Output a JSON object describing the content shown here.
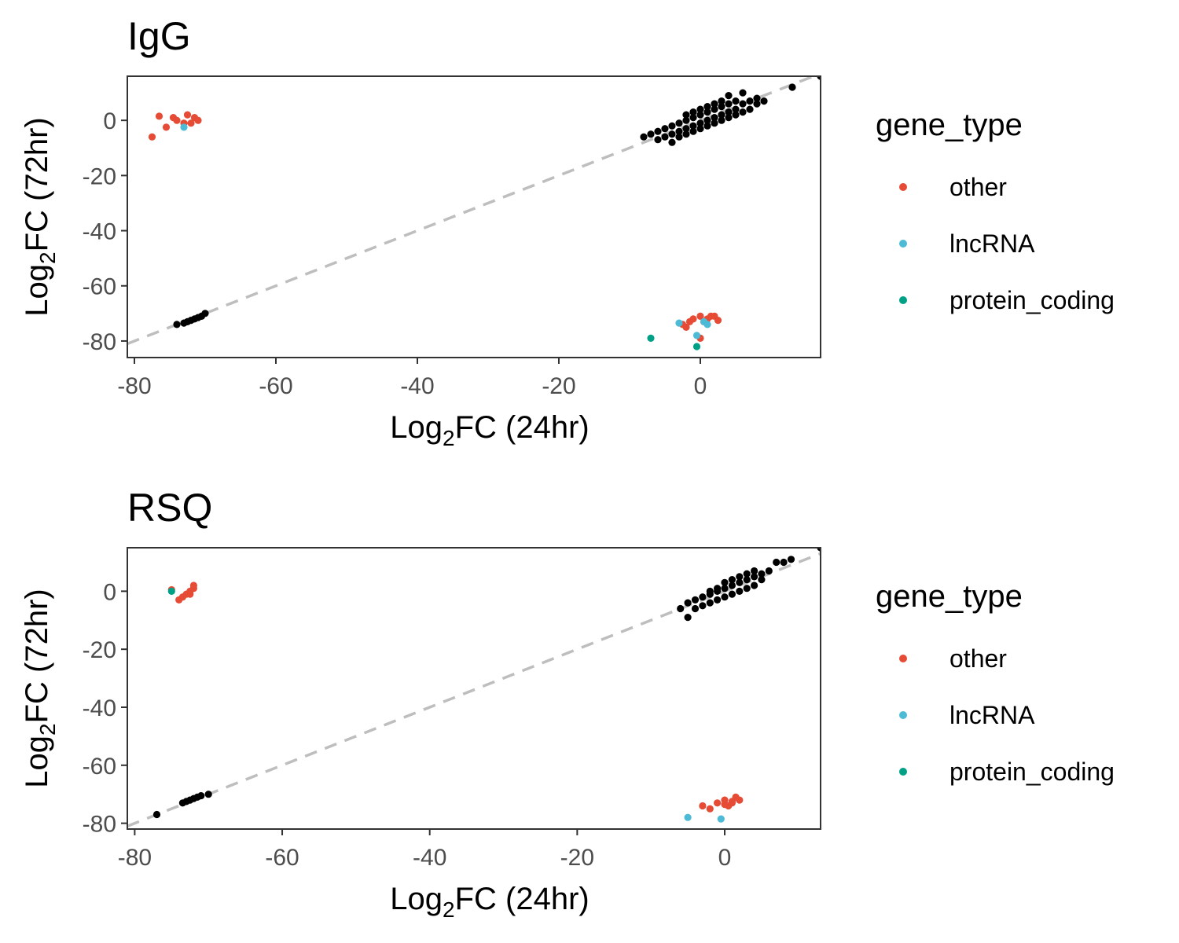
{
  "chart_data": [
    {
      "type": "scatter",
      "title": "IgG",
      "xlabel": {
        "base": "Log",
        "sub": "2",
        "rest": "FC (24hr)"
      },
      "ylabel": {
        "base": "Log",
        "sub": "2",
        "rest": "FC (72hr)"
      },
      "xlim": [
        -81,
        17
      ],
      "ylim": [
        -86,
        16
      ],
      "xticks": [
        -80,
        -60,
        -40,
        -20,
        0
      ],
      "yticks": [
        0,
        -20,
        -40,
        -60,
        -80
      ],
      "grid": false,
      "reference_line": {
        "style": "dashed",
        "slope": 1,
        "intercept": 0,
        "color": "#bebebe"
      },
      "legend": {
        "title": "gene_type",
        "position": "right",
        "entries": [
          {
            "label": "other",
            "color": "#E64B35"
          },
          {
            "label": "lncRNA",
            "color": "#4DBBD5"
          },
          {
            "label": "protein_coding",
            "color": "#00A087"
          }
        ]
      },
      "series": [
        {
          "group": "not-significant",
          "color": "#000000",
          "points": [
            [
              -8,
              -6
            ],
            [
              -7,
              -5
            ],
            [
              -6,
              -7
            ],
            [
              -6,
              -4
            ],
            [
              -5,
              -6
            ],
            [
              -5,
              -3
            ],
            [
              -4,
              -8
            ],
            [
              -4,
              -5
            ],
            [
              -4,
              -2
            ],
            [
              -3,
              -6
            ],
            [
              -3,
              -4
            ],
            [
              -3,
              -1
            ],
            [
              -2,
              -5
            ],
            [
              -2,
              -3
            ],
            [
              -2,
              0
            ],
            [
              -2,
              2
            ],
            [
              -1,
              -4
            ],
            [
              -1,
              -2
            ],
            [
              -1,
              1
            ],
            [
              -1,
              3
            ],
            [
              0,
              -3
            ],
            [
              0,
              -1
            ],
            [
              0,
              2
            ],
            [
              0,
              4
            ],
            [
              1,
              -2
            ],
            [
              1,
              0
            ],
            [
              1,
              3
            ],
            [
              1,
              5
            ],
            [
              2,
              -1
            ],
            [
              2,
              1
            ],
            [
              2,
              4
            ],
            [
              2,
              6
            ],
            [
              3,
              0
            ],
            [
              3,
              2
            ],
            [
              3,
              5
            ],
            [
              3,
              7
            ],
            [
              4,
              1
            ],
            [
              4,
              3
            ],
            [
              4,
              6
            ],
            [
              4,
              9
            ],
            [
              5,
              2
            ],
            [
              5,
              4
            ],
            [
              5,
              7
            ],
            [
              6,
              3
            ],
            [
              6,
              6
            ],
            [
              6,
              10
            ],
            [
              7,
              4
            ],
            [
              7,
              7
            ],
            [
              8,
              6
            ],
            [
              8,
              8
            ],
            [
              9,
              7
            ],
            [
              13,
              12
            ],
            [
              17,
              16
            ],
            [
              -74,
              -74
            ],
            [
              -73,
              -73.5
            ],
            [
              -72.5,
              -73
            ],
            [
              -72,
              -72.5
            ],
            [
              -71.5,
              -72
            ],
            [
              -71,
              -71.5
            ],
            [
              -70.5,
              -71
            ],
            [
              -70,
              -70
            ]
          ]
        },
        {
          "group": "other",
          "color": "#E64B35",
          "points": [
            [
              -77.5,
              -6
            ],
            [
              -76.5,
              1.5
            ],
            [
              -75.5,
              -2.5
            ],
            [
              -74.5,
              1
            ],
            [
              -74,
              0
            ],
            [
              -73,
              -1
            ],
            [
              -72.5,
              2
            ],
            [
              -72,
              -1
            ],
            [
              -71.5,
              1
            ],
            [
              -71,
              0
            ],
            [
              -2.5,
              -74
            ],
            [
              -2,
              -75
            ],
            [
              -1.5,
              -73
            ],
            [
              -1,
              -72
            ],
            [
              0,
              -71
            ],
            [
              0.5,
              -73
            ],
            [
              1,
              -72
            ],
            [
              1.5,
              -71
            ],
            [
              2,
              -71
            ],
            [
              2.5,
              -72.5
            ],
            [
              0,
              -79
            ]
          ]
        },
        {
          "group": "lncRNA",
          "color": "#4DBBD5",
          "points": [
            [
              -73,
              -2.5
            ],
            [
              -3,
              -73.5
            ],
            [
              -0.5,
              -78
            ],
            [
              0.5,
              -73
            ],
            [
              1,
              -74
            ]
          ]
        },
        {
          "group": "protein_coding",
          "color": "#00A087",
          "points": [
            [
              -7,
              -79
            ],
            [
              -0.5,
              -82
            ]
          ]
        }
      ]
    },
    {
      "type": "scatter",
      "title": "RSQ",
      "xlabel": {
        "base": "Log",
        "sub": "2",
        "rest": "FC (24hr)"
      },
      "ylabel": {
        "base": "Log",
        "sub": "2",
        "rest": "FC (72hr)"
      },
      "xlim": [
        -81,
        13
      ],
      "ylim": [
        -82,
        15
      ],
      "xticks": [
        -80,
        -60,
        -40,
        -20,
        0
      ],
      "yticks": [
        0,
        -20,
        -40,
        -60,
        -80
      ],
      "grid": false,
      "reference_line": {
        "style": "dashed",
        "slope": 1,
        "intercept": 0,
        "color": "#bebebe"
      },
      "legend": {
        "title": "gene_type",
        "position": "right",
        "entries": [
          {
            "label": "other",
            "color": "#E64B35"
          },
          {
            "label": "lncRNA",
            "color": "#4DBBD5"
          },
          {
            "label": "protein_coding",
            "color": "#00A087"
          }
        ]
      },
      "series": [
        {
          "group": "not-significant",
          "color": "#000000",
          "points": [
            [
              -6,
              -6
            ],
            [
              -5,
              -4
            ],
            [
              -5,
              -9
            ],
            [
              -4,
              -3
            ],
            [
              -4,
              -6
            ],
            [
              -3,
              -2
            ],
            [
              -3,
              -5
            ],
            [
              -2,
              -1
            ],
            [
              -2,
              -4
            ],
            [
              -2,
              0
            ],
            [
              -1,
              0
            ],
            [
              -1,
              -3
            ],
            [
              -1,
              1
            ],
            [
              0,
              1
            ],
            [
              0,
              -2
            ],
            [
              0,
              3
            ],
            [
              1,
              2
            ],
            [
              1,
              -1
            ],
            [
              1,
              4
            ],
            [
              2,
              3
            ],
            [
              2,
              0
            ],
            [
              2,
              5
            ],
            [
              3,
              4
            ],
            [
              3,
              1
            ],
            [
              3,
              6
            ],
            [
              4,
              5
            ],
            [
              4,
              2
            ],
            [
              4,
              7
            ],
            [
              5,
              6
            ],
            [
              5,
              4
            ],
            [
              6,
              7
            ],
            [
              7,
              10
            ],
            [
              8,
              10
            ],
            [
              9,
              11
            ],
            [
              13,
              15
            ],
            [
              -77,
              -77
            ],
            [
              -73.5,
              -73
            ],
            [
              -73,
              -72.5
            ],
            [
              -72.5,
              -72
            ],
            [
              -72,
              -71.5
            ],
            [
              -71.5,
              -71
            ],
            [
              -71,
              -70.5
            ],
            [
              -70,
              -70
            ]
          ]
        },
        {
          "group": "other",
          "color": "#E64B35",
          "points": [
            [
              -75,
              0.5
            ],
            [
              -74,
              -3
            ],
            [
              -73.5,
              -2
            ],
            [
              -73,
              -1
            ],
            [
              -72.5,
              0
            ],
            [
              -72,
              1
            ],
            [
              -72,
              2
            ],
            [
              -72.5,
              -1
            ],
            [
              -3,
              -74
            ],
            [
              -2,
              -75
            ],
            [
              -1,
              -73
            ],
            [
              0,
              -72
            ],
            [
              0.5,
              -74
            ],
            [
              1,
              -73
            ],
            [
              1.5,
              -71
            ],
            [
              2,
              -72
            ],
            [
              1,
              -72.5
            ],
            [
              0,
              -73.5
            ]
          ]
        },
        {
          "group": "lncRNA",
          "color": "#4DBBD5",
          "points": [
            [
              -5,
              -78
            ],
            [
              -0.5,
              -78.5
            ]
          ]
        },
        {
          "group": "protein_coding",
          "color": "#00A087",
          "points": [
            [
              -75,
              0
            ]
          ]
        }
      ]
    }
  ]
}
